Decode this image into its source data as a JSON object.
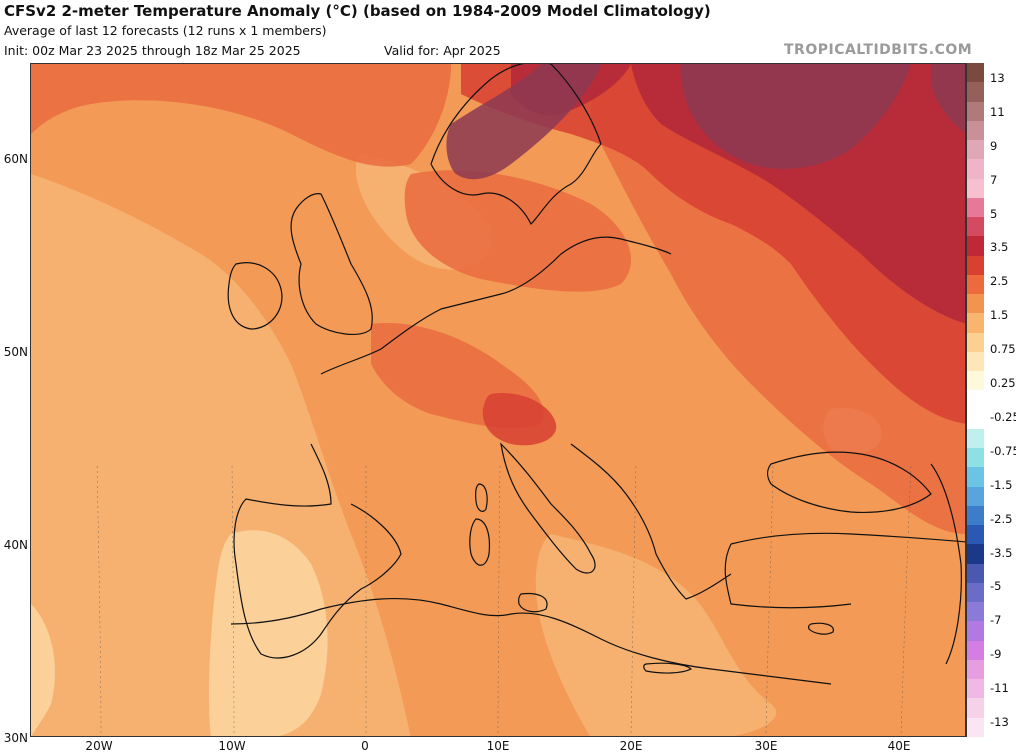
{
  "header": {
    "title": "CFSv2 2-meter Temperature Anomaly (°C) (based on 1984-2009 Model Climatology)",
    "subtitle": "Average of last 12 forecasts (12 runs x 1 members)",
    "init": "Init: 00z Mar 23 2025 through 18z Mar 25 2025",
    "valid": "Valid for: Apr 2025",
    "brand": "TROPICALTIDBITS.COM"
  },
  "map": {
    "region": "Europe",
    "lat_labels": [
      "60N",
      "50N",
      "40N",
      "30N"
    ],
    "lon_labels": [
      "20W",
      "10W",
      "0",
      "10E",
      "20E",
      "30E",
      "40E"
    ],
    "colors": {
      "background": "#f29a56",
      "light_orange": "#f7b575",
      "pale": "#fcd7a0",
      "red_orange": "#ea6b40",
      "red": "#d84032",
      "dark_red": "#b2283a",
      "maroon": "#8c3a52"
    }
  },
  "colorbar": {
    "labels": [
      "13",
      "11",
      "9",
      "7",
      "5",
      "3.5",
      "2.5",
      "1.5",
      "0.75",
      "0.25",
      "-0.25",
      "-0.75",
      "-1.5",
      "-2.5",
      "-3.5",
      "-5",
      "-7",
      "-9",
      "-11",
      "-13"
    ],
    "colors": [
      "#7a4a3f",
      "#96605a",
      "#b07a7a",
      "#c99098",
      "#e0a8b6",
      "#f0b4c8",
      "#f7c0d0",
      "#e87898",
      "#d44a60",
      "#c02838",
      "#d84030",
      "#ec6a3c",
      "#f29350",
      "#f7b56e",
      "#fbd090",
      "#fde7b8",
      "#fff9dc",
      "#ffffff",
      "#ffffff",
      "#c0f0ee",
      "#8ee0e4",
      "#6cc4e4",
      "#58a4dc",
      "#3c7cc8",
      "#2a58b4",
      "#1c3888",
      "#4a58b0",
      "#6a6cc8",
      "#8c7ad8",
      "#b07ae0",
      "#d47ee4",
      "#e69ee0",
      "#f0b8e4",
      "#f6d2ea",
      "#fae6f2"
    ]
  }
}
